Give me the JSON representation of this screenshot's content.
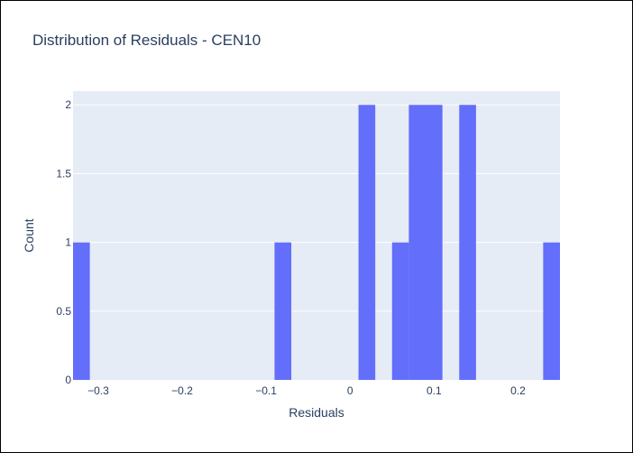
{
  "chart_data": {
    "type": "bar",
    "title": "Distribution of Residuals - CEN10",
    "xlabel": "Residuals",
    "ylabel": "Count",
    "xlim": [
      -0.33,
      0.25
    ],
    "ylim": [
      0,
      2.1
    ],
    "grid": true,
    "x_ticks": [
      {
        "value": -0.3,
        "label": "−0.3"
      },
      {
        "value": -0.2,
        "label": "−0.2"
      },
      {
        "value": -0.1,
        "label": "−0.1"
      },
      {
        "value": 0,
        "label": "0"
      },
      {
        "value": 0.1,
        "label": "0.1"
      },
      {
        "value": 0.2,
        "label": "0.2"
      }
    ],
    "y_ticks": [
      {
        "value": 0,
        "label": "0"
      },
      {
        "value": 0.5,
        "label": "0.5"
      },
      {
        "value": 1,
        "label": "1"
      },
      {
        "value": 1.5,
        "label": "1.5"
      },
      {
        "value": 2,
        "label": "2"
      }
    ],
    "bins": [
      {
        "x0": -0.33,
        "x1": -0.31,
        "count": 1
      },
      {
        "x0": -0.09,
        "x1": -0.07,
        "count": 1
      },
      {
        "x0": 0.01,
        "x1": 0.03,
        "count": 2
      },
      {
        "x0": 0.05,
        "x1": 0.07,
        "count": 1
      },
      {
        "x0": 0.07,
        "x1": 0.09,
        "count": 2
      },
      {
        "x0": 0.09,
        "x1": 0.11,
        "count": 2
      },
      {
        "x0": 0.13,
        "x1": 0.15,
        "count": 2
      },
      {
        "x0": 0.23,
        "x1": 0.25,
        "count": 1
      }
    ],
    "colors": {
      "bar": "#636efa",
      "plot_bg": "#e5ecf6",
      "grid": "#ffffff",
      "text": "#2a3f5f"
    }
  }
}
